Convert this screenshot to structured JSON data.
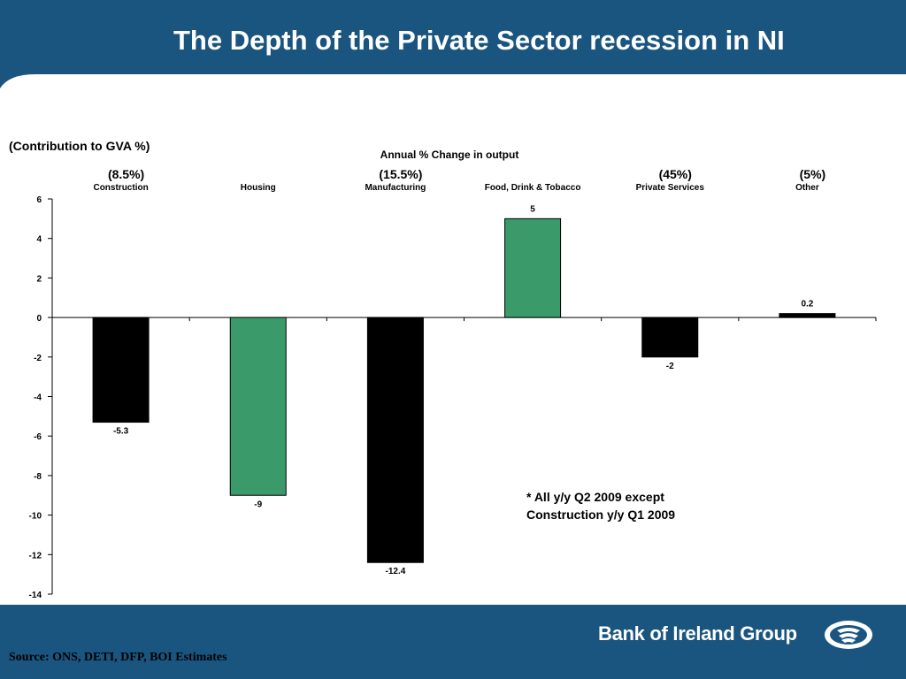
{
  "slide": {
    "title": "The Depth of the Private Sector recession in NI",
    "contribution_label": "(Contribution to GVA %)",
    "source": "Source: ONS, DETI, DFP, BOI Estimates",
    "brand": "Bank of Ireland Group",
    "note_lines": [
      "* All y/y Q2 2009 except",
      "Construction y/y Q1 2009"
    ],
    "colors": {
      "header_blue": "#1a5580",
      "bar_green": "#3a9a6a",
      "bar_black": "#000000"
    }
  },
  "chart_data": {
    "type": "bar",
    "title": "Annual % Change in output",
    "categories": [
      "Construction",
      "Housing",
      "Manufacturing",
      "Food, Drink & Tobacco",
      "Private Services",
      "Other"
    ],
    "shares": [
      "(8.5%)",
      "",
      "(15.5%)",
      "",
      "(45%)",
      "(5%)"
    ],
    "values": [
      -5.3,
      -9,
      -12.4,
      5,
      -2,
      0.2
    ],
    "value_labels": [
      "-5.3",
      "-9",
      "-12.4",
      "5",
      "-2",
      "0.2"
    ],
    "bar_colors": [
      "#000000",
      "#3a9a6a",
      "#000000",
      "#3a9a6a",
      "#000000",
      "#000000"
    ],
    "ylim": [
      -14,
      6
    ],
    "yticks": [
      6,
      4,
      2,
      0,
      -2,
      -4,
      -6,
      -8,
      -10,
      -12,
      -14
    ],
    "grid": false,
    "legend": "none"
  }
}
